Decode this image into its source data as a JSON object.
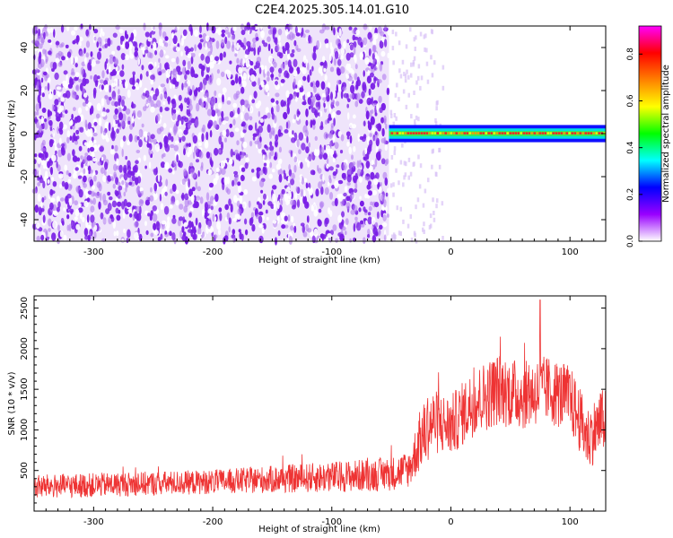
{
  "title": "C2E4.2025.305.14.01.G10",
  "chart_data": [
    {
      "type": "heatmap",
      "title": "C2E4.2025.305.14.01.G10",
      "xlabel": "Height of straight line (km)",
      "ylabel": "Frequency (Hz)",
      "xlim": [
        -350,
        130
      ],
      "ylim": [
        -50,
        50
      ],
      "x_ticks": [
        -300,
        -200,
        -100,
        0,
        100
      ],
      "x_tick_labels": [
        "-300",
        "-200",
        "-100",
        "0",
        "100"
      ],
      "y_ticks": [
        -40,
        -20,
        0,
        20,
        40
      ],
      "y_tick_labels": [
        "-40",
        "-20",
        "0",
        "20",
        "40"
      ],
      "colorbar": {
        "label": "Normalized spectral amplitude",
        "range": [
          0.0,
          0.92
        ],
        "ticks": [
          0.0,
          0.2,
          0.4,
          0.6,
          0.8
        ],
        "tick_labels": [
          "0.0",
          "0.2",
          "0.4",
          "0.6",
          "0.8"
        ],
        "colormap": [
          "#ffffff",
          "#9900ff",
          "#0000ff",
          "#00ffff",
          "#00ff00",
          "#ffff00",
          "#ff8000",
          "#ff0000",
          "#ff00ff"
        ]
      },
      "noise_region_x": [
        -350,
        -52
      ],
      "signal": {
        "x_start": -52,
        "x_end": 130,
        "frequency_hz": 0,
        "band_halfwidth_hz": 4,
        "peak_amplitude": 0.9
      },
      "noise_color": "#7a1fe6"
    },
    {
      "type": "line",
      "title": "",
      "xlabel": "Height of straight line (km)",
      "ylabel": "SNR (10 * v/v)",
      "xlim": [
        -350,
        130
      ],
      "ylim": [
        0,
        2650
      ],
      "x_ticks": [
        -300,
        -200,
        -100,
        0,
        100
      ],
      "x_tick_labels": [
        "-300",
        "-200",
        "-100",
        "0",
        "100"
      ],
      "y_ticks": [
        500,
        1000,
        1500,
        2000,
        2500
      ],
      "y_tick_labels": [
        "500",
        "1000",
        "1500",
        "2000",
        "2500"
      ],
      "series": [
        {
          "name": "SNR",
          "color": "#ee3333",
          "x": [
            -350,
            -300,
            -250,
            -200,
            -150,
            -100,
            -50,
            -35,
            -25,
            -15,
            0,
            20,
            40,
            60,
            80,
            100,
            115,
            130
          ],
          "values": [
            300,
            320,
            340,
            360,
            390,
            420,
            460,
            520,
            900,
            1100,
            1050,
            1350,
            1500,
            1420,
            1500,
            1380,
            900,
            1150
          ],
          "noise_amplitude": [
            150,
            150,
            150,
            150,
            170,
            190,
            210,
            230,
            400,
            400,
            380,
            420,
            450,
            420,
            420,
            420,
            400,
            400
          ],
          "peak": {
            "x": 75,
            "value": 2600
          }
        }
      ]
    }
  ]
}
